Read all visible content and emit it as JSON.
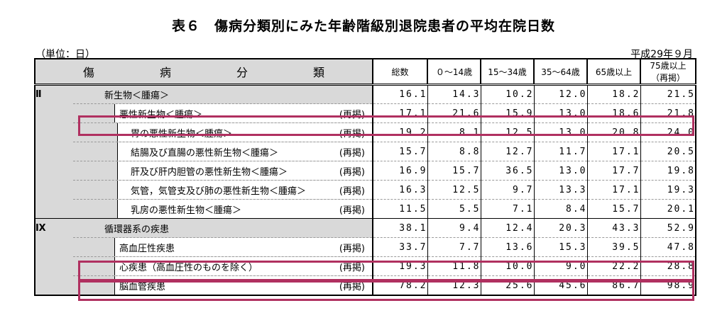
{
  "title": "表６　傷病分類別にみた年齢階級別退院患者の平均在院日数",
  "unit": "（単位：日）",
  "date": "平成29年９月",
  "headers": {
    "category": "傷　病　分　類",
    "total": "総数",
    "a0_14": "０～14歳",
    "a15_34": "15～34歳",
    "a35_64": "35～64歳",
    "a65": "65歳以上",
    "a75": "75歳以上",
    "a75_note": "（再掲）"
  },
  "rows": [
    {
      "group": "Ⅱ",
      "name": "新生物＜腫瘍＞",
      "tag": "",
      "values": [
        "16.1",
        "14.3",
        "10.2",
        "12.0",
        "18.2",
        "21.5"
      ]
    },
    {
      "group": "",
      "name": "悪性新生物＜腫瘍＞",
      "tag": "(再掲)",
      "values": [
        "17.1",
        "21.6",
        "15.9",
        "13.0",
        "18.6",
        "21.8"
      ]
    },
    {
      "group": "",
      "name": "胃の悪性新生物＜腫瘍＞",
      "tag": "(再掲)",
      "values": [
        "19.2",
        "8.1",
        "12.5",
        "13.0",
        "20.8",
        "24.0"
      ]
    },
    {
      "group": "",
      "name": "結腸及び直腸の悪性新生物＜腫瘍＞",
      "tag": "(再掲)",
      "values": [
        "15.7",
        "8.8",
        "12.7",
        "11.7",
        "17.1",
        "20.5"
      ]
    },
    {
      "group": "",
      "name": "肝及び肝内胆管の悪性新生物＜腫瘍＞",
      "tag": "(再掲)",
      "values": [
        "16.9",
        "15.7",
        "36.5",
        "13.0",
        "17.7",
        "19.8"
      ]
    },
    {
      "group": "",
      "name": "気管，気管支及び肺の悪性新生物＜腫瘍＞",
      "tag": "(再掲)",
      "values": [
        "16.3",
        "12.5",
        "9.7",
        "13.3",
        "17.1",
        "19.3"
      ]
    },
    {
      "group": "",
      "name": "乳房の悪性新生物＜腫瘍＞",
      "tag": "(再掲)",
      "values": [
        "11.5",
        "5.5",
        "7.1",
        "8.4",
        "15.7",
        "20.1"
      ]
    },
    {
      "group": "Ⅸ",
      "name": "循環器系の疾患",
      "tag": "",
      "values": [
        "38.1",
        "9.4",
        "12.4",
        "20.3",
        "43.3",
        "52.9"
      ]
    },
    {
      "group": "",
      "name": "高血圧性疾患",
      "tag": "(再掲)",
      "values": [
        "33.7",
        "7.7",
        "13.6",
        "15.3",
        "39.5",
        "47.8"
      ]
    },
    {
      "group": "",
      "name": "心疾患（高血圧性のものを除く）",
      "tag": "(再掲)",
      "values": [
        "19.3",
        "11.8",
        "10.0",
        "9.0",
        "22.2",
        "28.8"
      ]
    },
    {
      "group": "",
      "name": "脳血管疾患",
      "tag": "(再掲)",
      "values": [
        "78.2",
        "12.3",
        "25.6",
        "45.6",
        "86.7",
        "98.9"
      ]
    }
  ]
}
